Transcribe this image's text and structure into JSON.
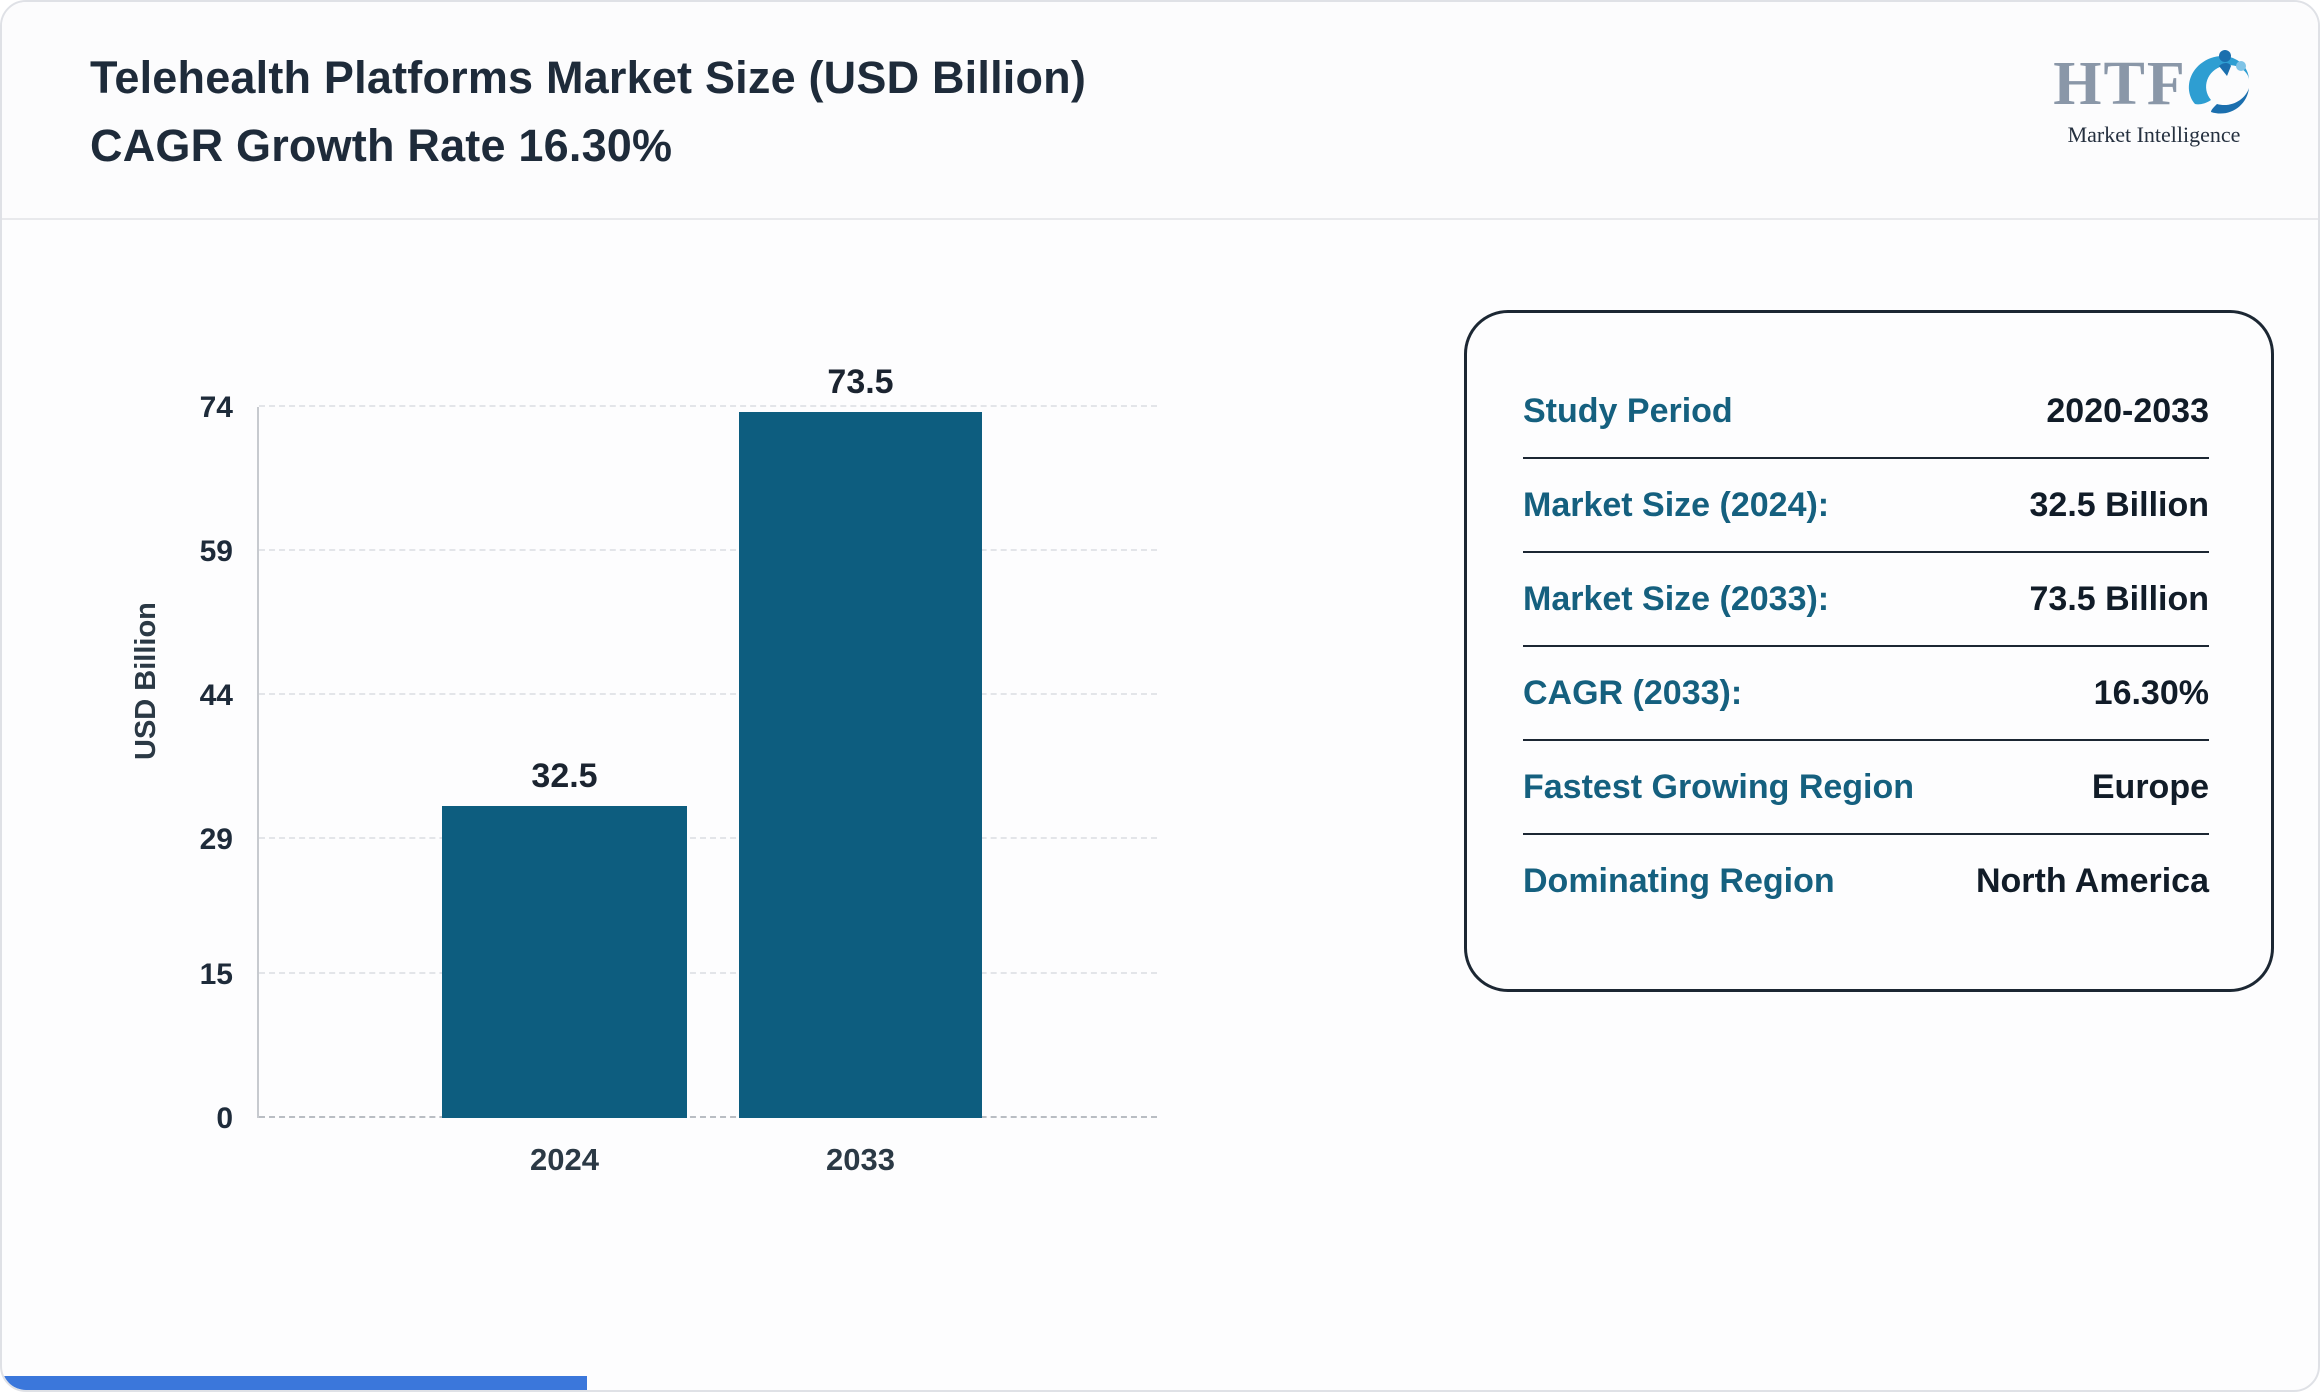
{
  "header": {
    "title_line1": "Telehealth Platforms Market Size (USD Billion)",
    "title_line2": "CAGR Growth Rate 16.30%"
  },
  "logo": {
    "text": "HTF",
    "subtext": "Market Intelligence",
    "swirl_icon": "swoosh-people-icon"
  },
  "chart_data": {
    "type": "bar",
    "categories": [
      "2024",
      "2033"
    ],
    "values": [
      32.5,
      73.5
    ],
    "value_labels": [
      "32.5",
      "73.5"
    ],
    "title": "Telehealth Platforms Market Size (USD Billion)",
    "xlabel": "",
    "ylabel": "USD Billion",
    "yticks": [
      0,
      15,
      29,
      44,
      59,
      74
    ],
    "ylim": [
      0,
      74
    ],
    "grid": "horizontal-dashed",
    "legend": "none",
    "bar_color": "#0d5d7f"
  },
  "info_card": {
    "rows": [
      {
        "label": "Study Period",
        "value": "2020-2033"
      },
      {
        "label": "Market Size (2024):",
        "value": "32.5 Billion"
      },
      {
        "label": "Market Size (2033):",
        "value": "73.5 Billion"
      },
      {
        "label": "CAGR (2033):",
        "value": "16.30%"
      },
      {
        "label": "Fastest Growing Region",
        "value": "Europe"
      },
      {
        "label": "Dominating Region",
        "value": "North America"
      }
    ]
  },
  "colors": {
    "bar": "#0d5d7f",
    "card_label": "#15607f",
    "card_value": "#111c28",
    "title_text": "#1e2b3a",
    "footer_accent": "#3b77db"
  }
}
